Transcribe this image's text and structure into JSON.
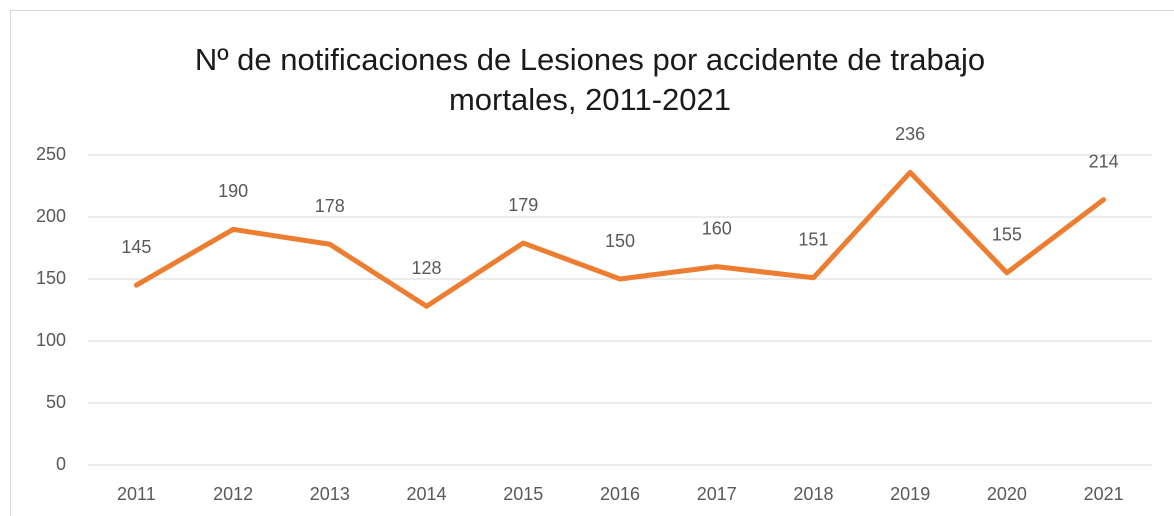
{
  "chart_data": {
    "type": "line",
    "title": "Nº de notificaciones de Lesiones por accidente de trabajo mortales, 2011-2021",
    "categories": [
      "2011",
      "2012",
      "2013",
      "2014",
      "2015",
      "2016",
      "2017",
      "2018",
      "2019",
      "2020",
      "2021"
    ],
    "series": [
      {
        "name": "Lesiones por accidente de trabajo mortales",
        "color": "#ed7d31",
        "values": [
          145,
          190,
          178,
          128,
          179,
          150,
          160,
          151,
          236,
          155,
          214
        ]
      }
    ],
    "ylim": [
      0,
      250
    ],
    "yticks": [
      0,
      50,
      100,
      150,
      200,
      250
    ],
    "grid": true,
    "legend": false,
    "data_labels": true
  }
}
